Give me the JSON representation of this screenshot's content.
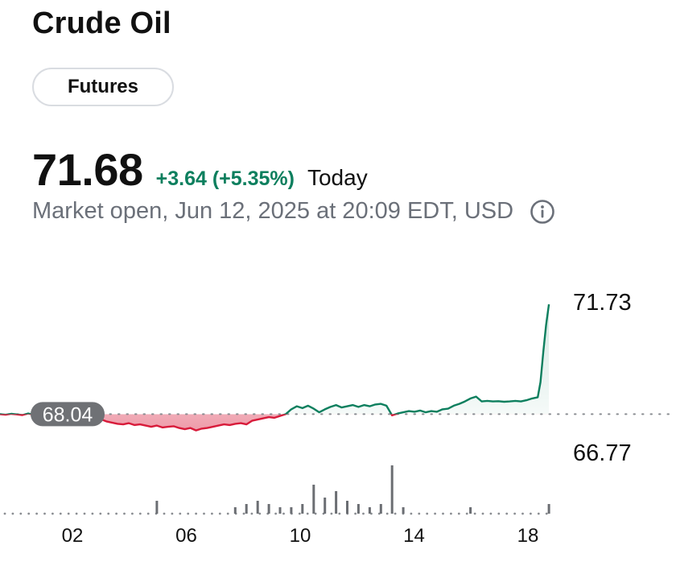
{
  "header": {
    "title": "Crude Oil",
    "chip_label": "Futures"
  },
  "quote": {
    "price": "71.68",
    "change": "+3.64 (+5.35%)",
    "period": "Today",
    "status": "Market open, Jun 12, 2025 at 20:09 EDT, USD"
  },
  "icons": {
    "info": "info-circle-icon"
  },
  "colors": {
    "up": "#0d7f5e",
    "down": "#d81b3a",
    "down_fill": "#f6c7cf",
    "baseline_badge": "#6f7175",
    "volume": "#6b6e73"
  },
  "chart_data": {
    "type": "line",
    "x_ticks": [
      "02",
      "06",
      "10",
      "14",
      "18"
    ],
    "y_high_label": "71.73",
    "y_low_label": "66.77",
    "baseline_label": "68.04",
    "baseline": 68.04,
    "ylim": [
      66.77,
      71.73
    ],
    "x_range": [
      0,
      20
    ],
    "series": [
      {
        "x": [
          0,
          0.2,
          0.4,
          0.6,
          0.8,
          1.0,
          1.2,
          1.4,
          1.6,
          1.8,
          2.0,
          2.2,
          2.4,
          2.6,
          2.8,
          3.0,
          3.2,
          3.4,
          3.6,
          3.8,
          4.0,
          4.2,
          4.4,
          4.6,
          4.8,
          5.0,
          5.2,
          5.4,
          5.6,
          5.8,
          6.0,
          6.2,
          6.4,
          6.6,
          6.8,
          7.0,
          7.2,
          7.4,
          7.6,
          7.8,
          8.0,
          8.2,
          8.4,
          8.6,
          8.8,
          9.0,
          9.2,
          9.4,
          9.6,
          9.8,
          10.0,
          10.2,
          10.4,
          10.6,
          10.8,
          11.0,
          11.2,
          11.4,
          11.6,
          11.8,
          12.0,
          12.2,
          12.4,
          12.6,
          12.8,
          13.0,
          13.2,
          13.4,
          13.6,
          13.8,
          14.0,
          14.2,
          14.4,
          14.6,
          14.8,
          15.0,
          15.2,
          15.4,
          15.6,
          15.8,
          16.0,
          16.2,
          16.4,
          16.6,
          16.8,
          17.0,
          17.2,
          17.4,
          17.6,
          17.8,
          18.0,
          18.2,
          18.4,
          18.6,
          18.8,
          19.0,
          19.2,
          19.3,
          19.4,
          19.5,
          19.6
        ],
        "y": [
          68.04,
          68.02,
          68.05,
          68.03,
          68.01,
          68.06,
          68.02,
          68.08,
          68.05,
          68.03,
          68.06,
          68.0,
          67.92,
          67.88,
          67.94,
          67.86,
          67.9,
          67.84,
          67.87,
          67.8,
          67.76,
          67.72,
          67.7,
          67.74,
          67.68,
          67.7,
          67.66,
          67.62,
          67.66,
          67.6,
          67.62,
          67.64,
          67.58,
          67.54,
          67.58,
          67.5,
          67.56,
          67.58,
          67.62,
          67.66,
          67.7,
          67.68,
          67.72,
          67.74,
          67.7,
          67.82,
          67.86,
          67.9,
          67.94,
          67.92,
          67.98,
          68.04,
          68.2,
          68.3,
          68.24,
          68.32,
          68.22,
          68.1,
          68.2,
          68.28,
          68.34,
          68.26,
          68.3,
          68.34,
          68.28,
          68.34,
          68.3,
          68.36,
          68.38,
          68.32,
          68.0,
          68.06,
          68.1,
          68.14,
          68.12,
          68.16,
          68.1,
          68.14,
          68.12,
          68.2,
          68.22,
          68.32,
          68.38,
          68.46,
          68.56,
          68.62,
          68.46,
          68.48,
          68.46,
          68.47,
          68.45,
          68.46,
          68.48,
          68.46,
          68.5,
          68.56,
          68.6,
          69.1,
          70.1,
          71.0,
          71.68
        ]
      }
    ],
    "volume": {
      "x": [
        0,
        0.4,
        0.8,
        1.2,
        1.6,
        2.0,
        2.4,
        2.8,
        3.2,
        3.6,
        4.0,
        4.4,
        4.8,
        5.2,
        5.6,
        6.0,
        6.4,
        6.8,
        7.2,
        7.6,
        8.0,
        8.4,
        8.8,
        9.2,
        9.6,
        10.0,
        10.4,
        10.8,
        11.2,
        11.6,
        12.0,
        12.4,
        12.8,
        13.2,
        13.6,
        14.0,
        14.4,
        14.8,
        15.2,
        15.6,
        16.0,
        16.4,
        16.8,
        17.2,
        17.6,
        18.0,
        18.4,
        18.8,
        19.2,
        19.6
      ],
      "values": [
        1,
        1,
        1,
        1,
        1,
        1,
        1,
        1,
        1,
        1,
        1,
        1,
        1,
        1,
        4,
        1,
        1,
        1,
        1,
        1,
        1,
        2,
        3,
        4,
        3,
        2,
        2,
        3,
        9,
        5,
        7,
        4,
        3,
        2,
        3,
        15,
        2,
        1,
        1,
        1,
        1,
        1,
        2,
        1,
        1,
        1,
        1,
        1,
        1,
        3
      ]
    }
  }
}
